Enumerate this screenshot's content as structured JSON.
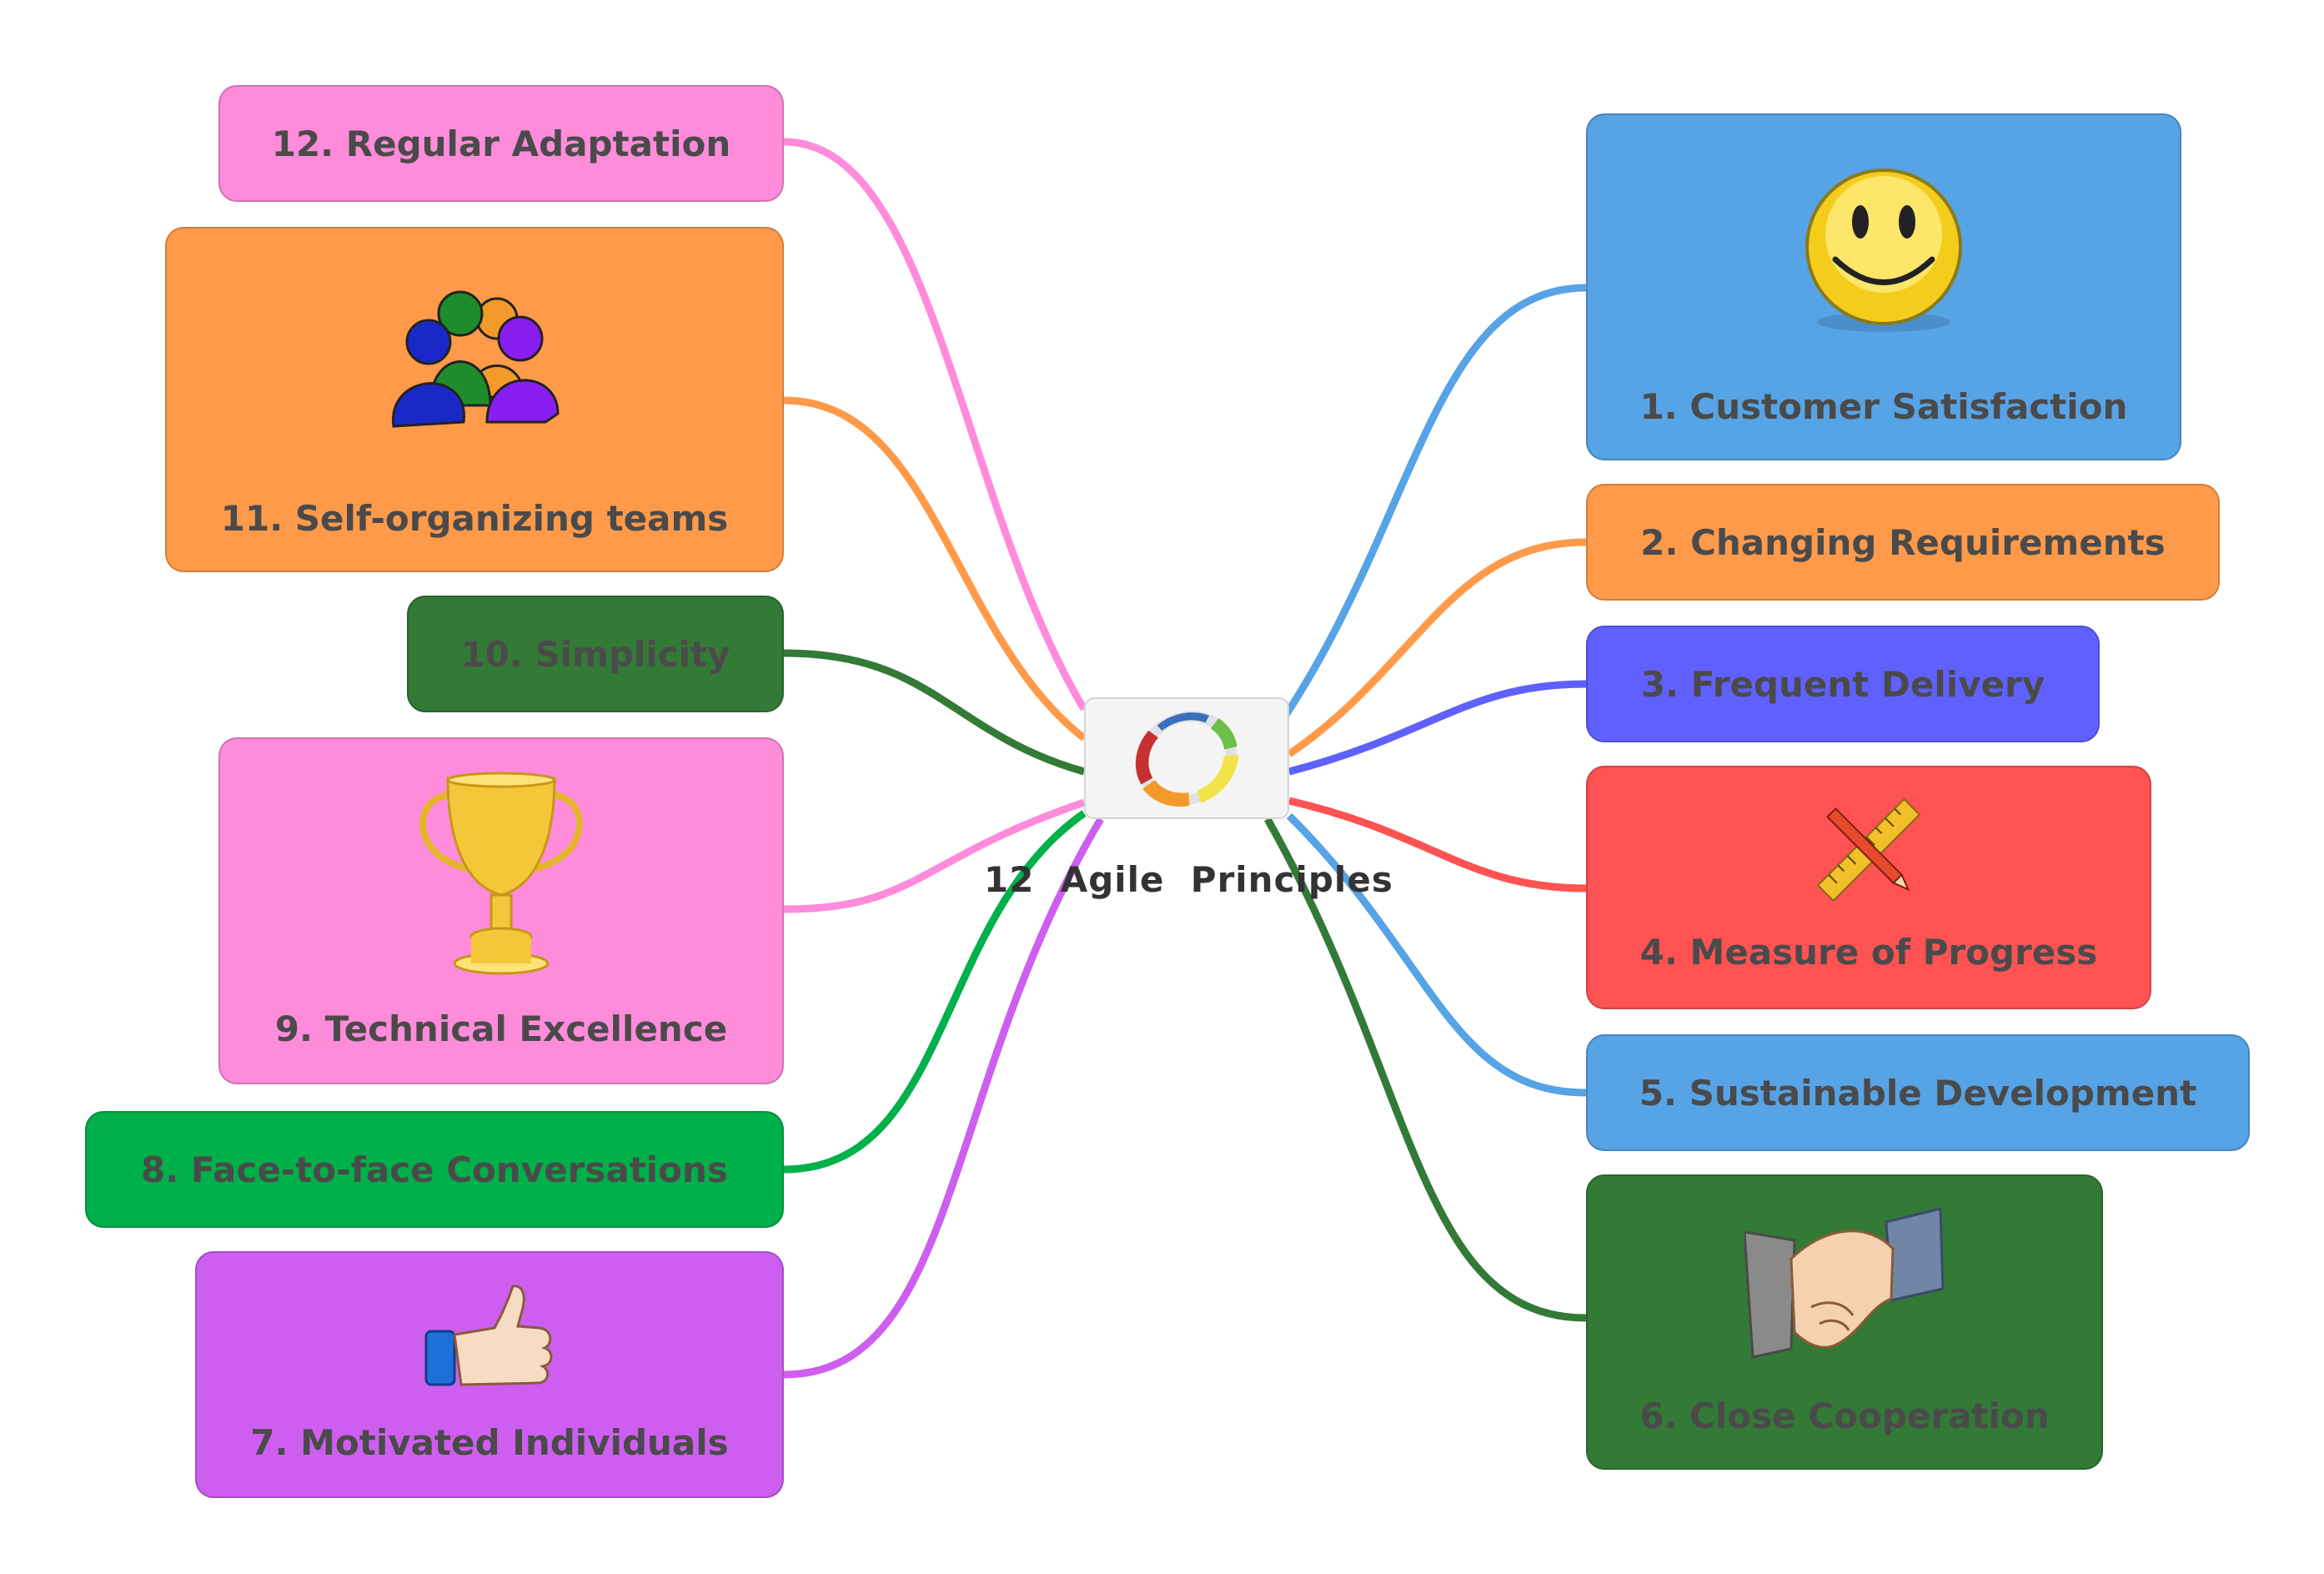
{
  "center": {
    "title": "12  Agile  Principles",
    "icon": "agile-cycle-icon"
  },
  "principles": [
    {
      "label": "1. Customer Satisfaction",
      "color": "#56a3e6",
      "icon": "smiley-face-icon",
      "link_color": "#56a3e6"
    },
    {
      "label": "2. Changing Requirements",
      "color": "#ff9a4a",
      "link_color": "#ff9a4a"
    },
    {
      "label": "3. Frequent Delivery",
      "color": "#6060ff",
      "link_color": "#6060ff"
    },
    {
      "label": "4. Measure of Progress",
      "color": "#ff5252",
      "icon": "ruler-and-pencil-icon",
      "link_color": "#ff5252"
    },
    {
      "label": "5. Sustainable Development",
      "color": "#56a3e6",
      "link_color": "#56a3e6"
    },
    {
      "label": "6. Close Cooperation",
      "color": "#327a36",
      "icon": "handshake-icon",
      "link_color": "#327a36"
    },
    {
      "label": "7. Motivated Individuals",
      "color": "#cd5ef0",
      "icon": "thumbs-up-icon",
      "link_color": "#cd5ef0"
    },
    {
      "label": "8. Face-to-face Conversations",
      "color": "#00b04a",
      "link_color": "#00b04a"
    },
    {
      "label": "9. Technical Excellence",
      "color": "#ff8bdb",
      "icon": "trophy-icon",
      "link_color": "#ff8bdb"
    },
    {
      "label": "10. Simplicity",
      "color": "#327a36",
      "link_color": "#327a36"
    },
    {
      "label": "11. Self-organizing teams",
      "color": "#ff9a4a",
      "icon": "team-people-icon",
      "link_color": "#ff9a4a"
    },
    {
      "label": "12. Regular Adaptation",
      "color": "#ff8bdb",
      "link_color": "#ff8bdb"
    }
  ]
}
